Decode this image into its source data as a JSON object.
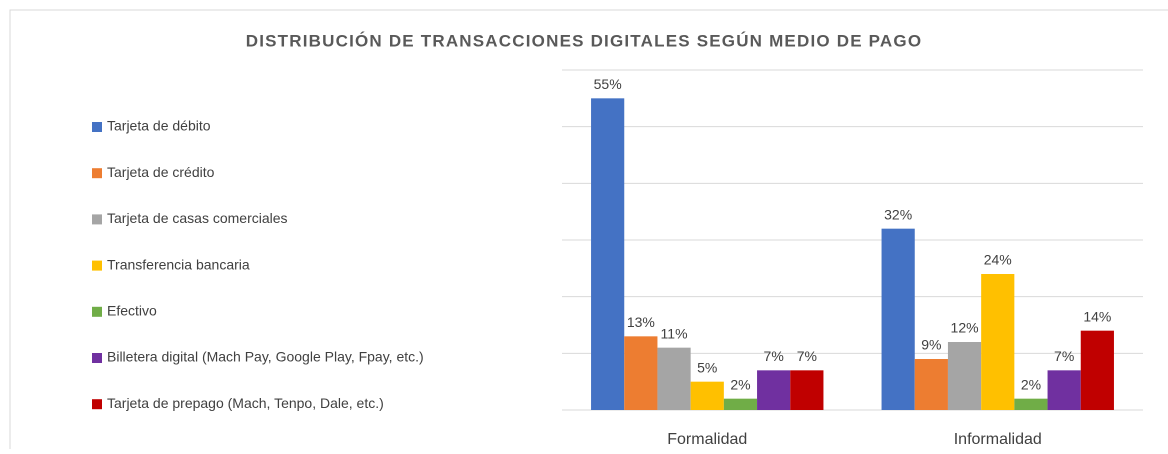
{
  "chart_data": {
    "type": "bar",
    "title": "DISTRIBUCIÓN DE TRANSACCIONES DIGITALES SEGÚN MEDIO DE PAGO",
    "categories": [
      "Formalidad",
      "Informalidad"
    ],
    "series": [
      {
        "name": "Tarjeta de débito",
        "color": "#4472c4",
        "values": [
          55,
          32
        ],
        "value_labels": [
          "55%",
          "32%"
        ]
      },
      {
        "name": "Tarjeta de crédito",
        "color": "#ed7d31",
        "values": [
          13,
          9
        ],
        "value_labels": [
          "13%",
          "9%"
        ]
      },
      {
        "name": "Tarjeta de casas comerciales",
        "color": "#a5a5a5",
        "values": [
          11,
          12
        ],
        "value_labels": [
          "11%",
          "12%"
        ]
      },
      {
        "name": "Transferencia bancaria",
        "color": "#ffc000",
        "values": [
          5,
          24
        ],
        "value_labels": [
          "5%",
          "24%"
        ]
      },
      {
        "name": "Efectivo",
        "color": "#70ad47",
        "values": [
          2,
          2
        ],
        "value_labels": [
          "2%",
          "2%"
        ]
      },
      {
        "name": "Billetera digital (Mach Pay, Google Play, Fpay, etc.)",
        "color": "#7030a0",
        "values": [
          7,
          7
        ],
        "value_labels": [
          "7%",
          "7%"
        ]
      },
      {
        "name": "Tarjeta de prepago (Mach, Tenpo, Dale, etc.)",
        "color": "#c00000",
        "values": [
          7,
          14
        ],
        "value_labels": [
          "7%",
          "14%"
        ]
      }
    ],
    "ylim": [
      0,
      60
    ],
    "yticks": [
      0,
      10,
      20,
      30,
      40,
      50,
      60
    ],
    "grid": true,
    "legend": "left"
  }
}
